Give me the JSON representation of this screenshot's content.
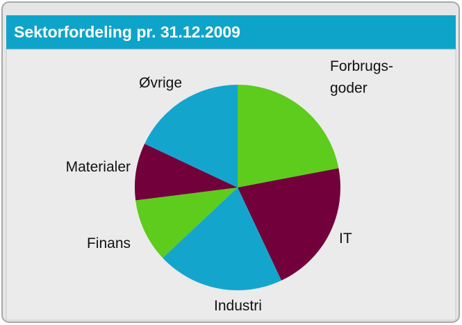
{
  "chart_data": {
    "type": "pie",
    "title": "Sektorfordeling pr. 31.12.2009",
    "categories": [
      "Forbrugs-\ngoder",
      "IT",
      "Industri",
      "Finans",
      "Materialer",
      "Øvrige"
    ],
    "values": [
      22,
      21,
      20,
      10,
      9,
      18
    ],
    "colors": [
      "#5dcc1d",
      "#72003a",
      "#14a5cd",
      "#5dcc1d",
      "#72003a",
      "#14a5cd"
    ],
    "start_angle": 0,
    "direction": "clockwise"
  }
}
